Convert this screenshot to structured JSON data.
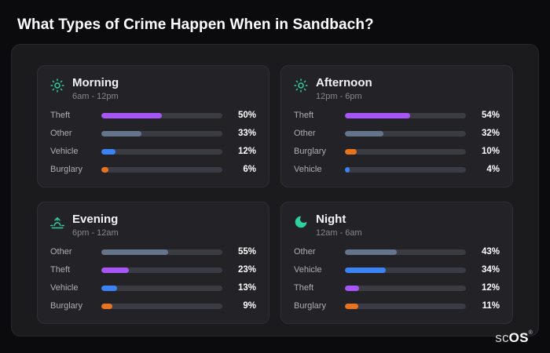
{
  "page": {
    "title": "What Types of Crime Happen When in Sandbach?",
    "brand_sc": "sc",
    "brand_os": "OS",
    "brand_reg": "®"
  },
  "category_colors": {
    "Theft": "#a855f7",
    "Other": "#64748b",
    "Vehicle": "#3b82f6",
    "Burglary": "#e8731f"
  },
  "icon_color": "#2fcfa0",
  "chart_data": [
    {
      "type": "bar",
      "title": "Morning",
      "subtitle": "6am - 12pm",
      "icon": "sun-icon",
      "categories": [
        "Theft",
        "Other",
        "Vehicle",
        "Burglary"
      ],
      "values": [
        50,
        33,
        12,
        6
      ],
      "value_suffix": "%",
      "xlim": [
        0,
        100
      ]
    },
    {
      "type": "bar",
      "title": "Afternoon",
      "subtitle": "12pm - 6pm",
      "icon": "sun-icon",
      "categories": [
        "Theft",
        "Other",
        "Burglary",
        "Vehicle"
      ],
      "values": [
        54,
        32,
        10,
        4
      ],
      "value_suffix": "%",
      "xlim": [
        0,
        100
      ]
    },
    {
      "type": "bar",
      "title": "Evening",
      "subtitle": "6pm - 12am",
      "icon": "sunrise-icon",
      "categories": [
        "Other",
        "Theft",
        "Vehicle",
        "Burglary"
      ],
      "values": [
        55,
        23,
        13,
        9
      ],
      "value_suffix": "%",
      "xlim": [
        0,
        100
      ]
    },
    {
      "type": "bar",
      "title": "Night",
      "subtitle": "12am - 6am",
      "icon": "moon-icon",
      "categories": [
        "Other",
        "Vehicle",
        "Theft",
        "Burglary"
      ],
      "values": [
        43,
        34,
        12,
        11
      ],
      "value_suffix": "%",
      "xlim": [
        0,
        100
      ]
    }
  ]
}
